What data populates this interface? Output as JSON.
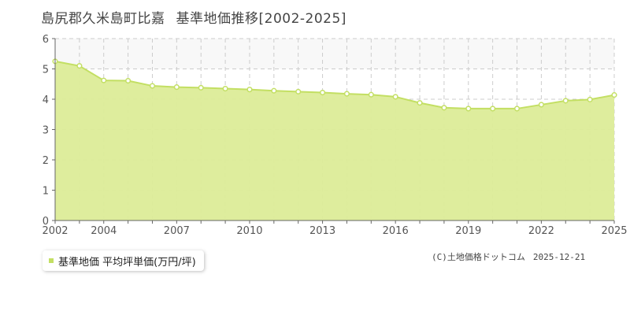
{
  "header": {
    "title_place": "島尻郡久米島町比嘉",
    "title_main": "基準地価推移[2002-2025]"
  },
  "legend": {
    "label": "基準地価 平均坪単価(万円/坪)"
  },
  "credit": {
    "source": "(C)土地価格ドットコム",
    "date": "2025-12-21"
  },
  "colors": {
    "area_fill": "#dcec98",
    "line": "#c3df63",
    "marker": "#c3df63",
    "upper_band": "#f8f8f8",
    "grid": "#cccccc",
    "axis": "#666666"
  },
  "chart_data": {
    "type": "area",
    "x": [
      2002,
      2003,
      2004,
      2005,
      2006,
      2007,
      2008,
      2009,
      2010,
      2011,
      2012,
      2013,
      2014,
      2015,
      2016,
      2017,
      2018,
      2019,
      2020,
      2021,
      2022,
      2023,
      2024,
      2025
    ],
    "series": [
      {
        "values": [
          5.25,
          5.1,
          4.62,
          4.61,
          4.44,
          4.4,
          4.38,
          4.35,
          4.32,
          4.28,
          4.25,
          4.22,
          4.18,
          4.15,
          4.08,
          3.88,
          3.72,
          3.69,
          3.69,
          3.69,
          3.82,
          3.95,
          3.99,
          4.14
        ]
      }
    ],
    "x_tick_labels": [
      "2002",
      "2004",
      "2007",
      "2010",
      "2013",
      "2016",
      "2019",
      "2022",
      "2025"
    ],
    "y_tick_labels": [
      "0",
      "1",
      "2",
      "3",
      "4",
      "5",
      "6"
    ],
    "ylim": [
      0,
      6
    ],
    "xlim": [
      2002,
      2025
    ],
    "grid": true
  }
}
